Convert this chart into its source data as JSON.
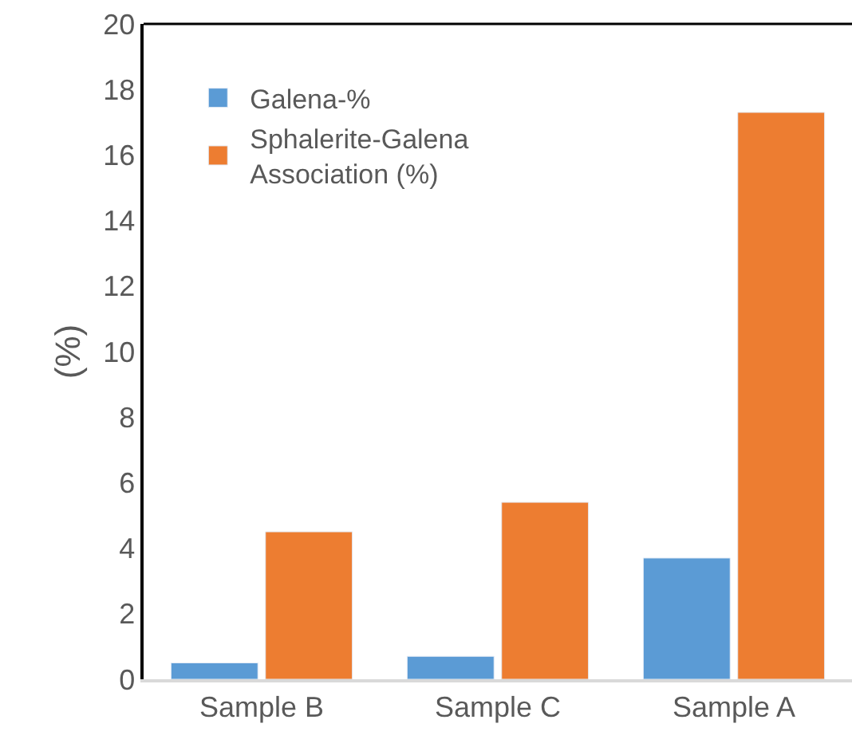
{
  "chart_data": {
    "type": "bar",
    "categories": [
      "Sample B",
      "Sample C",
      "Sample A"
    ],
    "ylabel": "(%)",
    "series": [
      {
        "name": "Galena-%",
        "color": "#5b9bd5",
        "values": [
          0.5,
          0.7,
          3.7
        ]
      },
      {
        "name": "Sphalerite-Galena Association (%)",
        "color": "#ed7d31",
        "values": [
          4.5,
          5.4,
          17.3
        ]
      }
    ],
    "ylim": [
      0,
      20
    ],
    "yticks": [
      0,
      2,
      4,
      6,
      8,
      10,
      12,
      14,
      16,
      18,
      20
    ],
    "legend": "top left"
  }
}
